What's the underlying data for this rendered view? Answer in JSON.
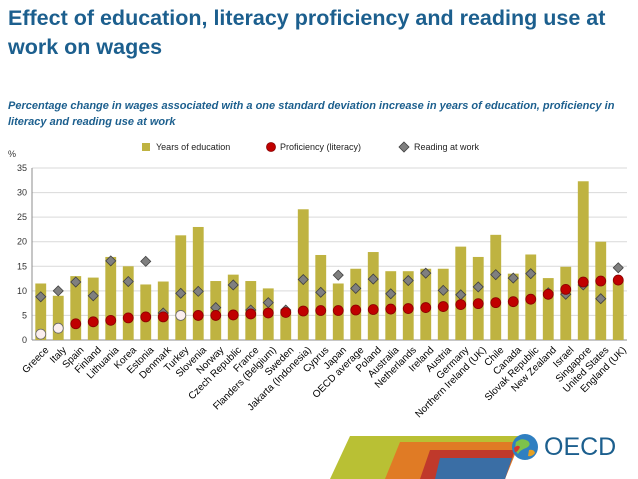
{
  "title": "Effect of education, literacy proficiency and reading use at work on wages",
  "subtitle": "Percentage change in wages associated with a one standard deviation increase in years of education, proficiency in literacy and reading use at work",
  "logo_text": "OECD",
  "colors": {
    "title": "#1c5f8e",
    "bar": "#bfb341",
    "dot": "#c00000",
    "diamond": "#7f7f7f"
  },
  "chart_data": {
    "type": "bar",
    "ylabel": "%",
    "ylim": [
      0,
      35
    ],
    "yticks": [
      0,
      5,
      10,
      15,
      20,
      25,
      30,
      35
    ],
    "grid": true,
    "legend_position": "top",
    "categories": [
      "Greece",
      "Italy",
      "Spain",
      "Finland",
      "Lithuania",
      "Korea",
      "Estonia",
      "Denmark",
      "Turkey",
      "Slovenia",
      "Norway",
      "Czech Republic",
      "France",
      "Flanders (Belgium)",
      "Sweden",
      "Jakarta (Indonesia)",
      "Cyprus",
      "Japan",
      "OECD average",
      "Poland",
      "Australia",
      "Netherlands",
      "Ireland",
      "Austria",
      "Germany",
      "Northern Ireland (UK)",
      "Chile",
      "Canada",
      "Slovak Republic",
      "New Zealand",
      "Israel",
      "Singapore",
      "United States",
      "England (UK)"
    ],
    "series": [
      {
        "name": "Years of education",
        "kind": "bar",
        "values": [
          11.5,
          9,
          13,
          12.7,
          16.9,
          15,
          11.3,
          11.9,
          21.3,
          23,
          12,
          13.3,
          12,
          10.5,
          6,
          26.6,
          17.3,
          11.5,
          14.5,
          17.9,
          14,
          14,
          14.5,
          14.5,
          19,
          16.9,
          21.4,
          13.5,
          17.4,
          12.6,
          14.9,
          32.3,
          20,
          12.1
        ]
      },
      {
        "name": "Proficiency (literacy)",
        "kind": "dot",
        "values": [
          1.2,
          2.4,
          3.3,
          3.7,
          4.0,
          4.5,
          4.7,
          4.7,
          5.0,
          5.0,
          5.0,
          5.1,
          5.3,
          5.5,
          5.6,
          5.9,
          6.0,
          6.0,
          6.1,
          6.2,
          6.3,
          6.4,
          6.6,
          6.8,
          7.2,
          7.4,
          7.6,
          7.8,
          8.3,
          9.3,
          10.3,
          11.8,
          12.0,
          12.2
        ]
      },
      {
        "name": "Reading at work",
        "kind": "diamond",
        "values": [
          8.8,
          10.0,
          11.8,
          9.0,
          16.1,
          11.9,
          16.0,
          5.5,
          9.5,
          9.9,
          6.6,
          11.2,
          6.1,
          7.6,
          6.1,
          12.3,
          9.7,
          13.2,
          10.5,
          12.4,
          9.4,
          12.1,
          13.6,
          10.1,
          9.2,
          10.8,
          13.3,
          12.6,
          13.5,
          9.6,
          9.3,
          11.2,
          8.4,
          14.7
        ]
      }
    ],
    "non_significant_literacy": [
      "Greece",
      "Italy",
      "Turkey"
    ]
  }
}
